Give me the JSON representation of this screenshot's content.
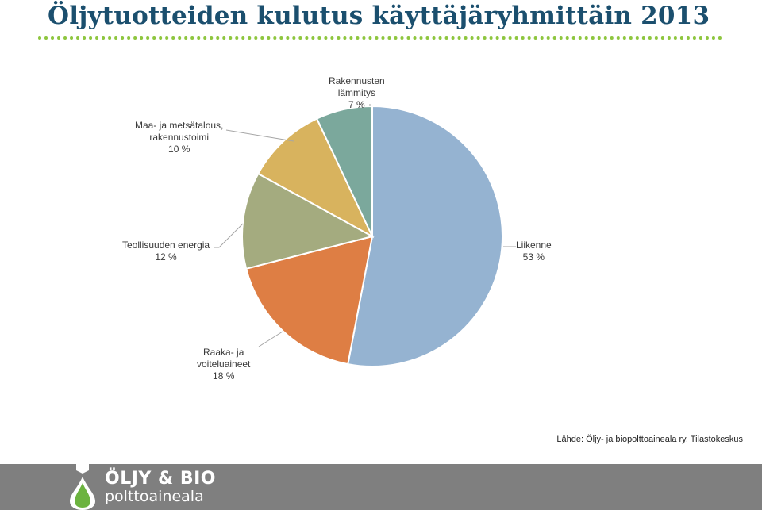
{
  "page": {
    "title": "Öljytuotteiden kulutus käyttäjäryhmittäin 2013",
    "source": "Lähde: Öljy- ja biopolttoaineala ry, Tilastokeskus"
  },
  "logo": {
    "line1": "ÖLJY & BIO",
    "line2": "polttoaineala",
    "icon": "oil-drop-icon",
    "drop_color": "#6cb33f"
  },
  "colors": {
    "title": "#1b4f6e",
    "divider": "#8ec63f",
    "footer": "#7f7f7f"
  },
  "chart_data": {
    "type": "pie",
    "slices": [
      {
        "label": [
          "Liikenne"
        ],
        "percent_text": "53 %",
        "value": 53,
        "color": "#95b3d1"
      },
      {
        "label": [
          "Raaka- ja",
          "voiteluaineet"
        ],
        "percent_text": "18 %",
        "value": 18,
        "color": "#de7e44"
      },
      {
        "label": [
          "Teollisuuden energia"
        ],
        "percent_text": "12 %",
        "value": 12,
        "color": "#a4ab7f"
      },
      {
        "label": [
          "Maa- ja metsätalous,",
          "rakennustoimi"
        ],
        "percent_text": "10 %",
        "value": 10,
        "color": "#d8b35e"
      },
      {
        "label": [
          "Rakennusten",
          "lämmitys"
        ],
        "percent_text": "7 %",
        "value": 7,
        "color": "#7ba89c"
      }
    ],
    "legend": "none",
    "start": "top",
    "direction": "clockwise"
  }
}
